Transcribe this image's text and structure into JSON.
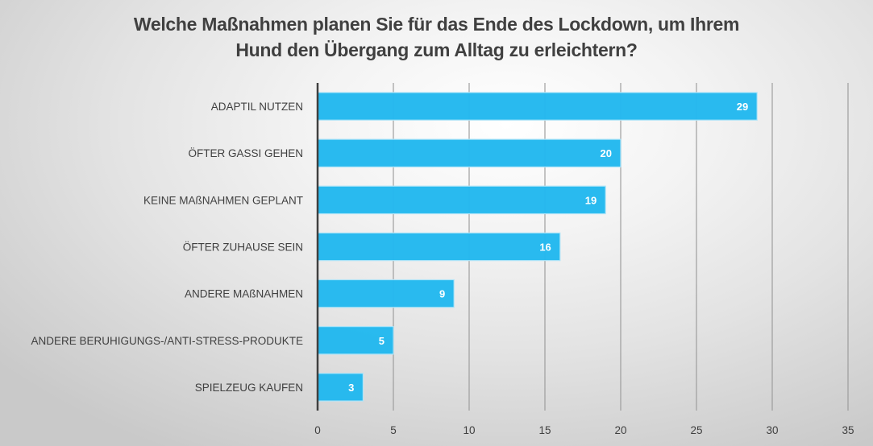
{
  "chart_data": {
    "type": "bar",
    "orientation": "horizontal",
    "title": "Welche Maßnahmen planen Sie für das Ende des Lockdown, um Ihrem Hund den Übergang zum Alltag zu erleichtern?",
    "title_lines": [
      "Welche Maßnahmen planen Sie für das Ende des Lockdown, um Ihrem",
      "Hund den Übergang zum Alltag zu erleichtern?"
    ],
    "categories": [
      "ADAPTIL NUTZEN",
      "ÖFTER GASSI GEHEN",
      "KEINE MAßNAHMEN GEPLANT",
      "ÖFTER ZUHAUSE SEIN",
      "ANDERE MAßNAHMEN",
      "ANDERE BERUHIGUNGS-/ANTI-STRESS-PRODUKTE",
      "SPIELZEUG KAUFEN"
    ],
    "values": [
      29,
      20,
      19,
      16,
      9,
      5,
      3
    ],
    "xlabel": "",
    "ylabel": "",
    "xlim": [
      0,
      35
    ],
    "xticks": [
      0,
      5,
      10,
      15,
      20,
      25,
      30,
      35
    ],
    "grid": true,
    "legend": "none",
    "data_labels": "inside-end",
    "colors": {
      "bar": "#22b8ee",
      "bar_border": "#aee4f8",
      "axis": "#404040",
      "grid": "#9a9a9a",
      "text": "#404040",
      "label": "#ffffff"
    }
  }
}
